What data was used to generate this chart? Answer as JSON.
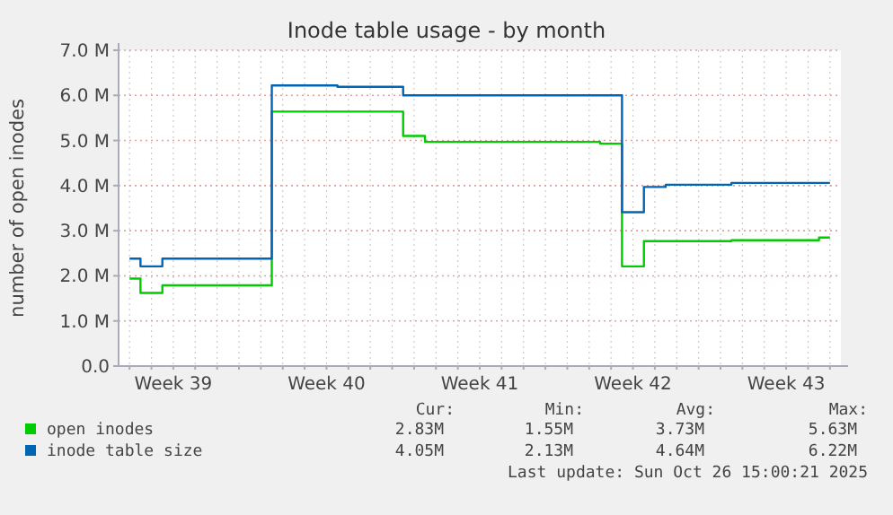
{
  "chart_data": {
    "type": "step",
    "title": "Inode table usage - by month",
    "ylabel": "number of open inodes",
    "categories": [
      null,
      null,
      "Week 39",
      null,
      null,
      null,
      null,
      null,
      null,
      "Week 40",
      null,
      null,
      null,
      null,
      null,
      null,
      "Week 41",
      null,
      null,
      null,
      null,
      null,
      null,
      "Week 42",
      null,
      null,
      null,
      null,
      null,
      null,
      "Week 43",
      null,
      null
    ],
    "ylim": [
      0,
      7
    ],
    "yticks": [
      {
        "value": 0,
        "label": "0.0"
      },
      {
        "value": 1,
        "label": "1.0 M"
      },
      {
        "value": 2,
        "label": "2.0 M"
      },
      {
        "value": 3,
        "label": "3.0 M"
      },
      {
        "value": 4,
        "label": "4.0 M"
      },
      {
        "value": 5,
        "label": "5.0 M"
      },
      {
        "value": 6,
        "label": "6.0 M"
      },
      {
        "value": 7,
        "label": "7.0 M"
      }
    ],
    "grid": true,
    "legend": "bottom",
    "series": [
      {
        "name": "open inodes",
        "color": "#00cc00",
        "values": [
          1.94,
          1.62,
          1.79,
          1.79,
          1.79,
          1.79,
          1.79,
          5.64,
          5.64,
          5.64,
          5.64,
          5.64,
          5.64,
          5.1,
          4.97,
          4.97,
          4.97,
          4.97,
          4.97,
          4.97,
          4.97,
          4.97,
          4.93,
          2.21,
          2.77,
          2.77,
          2.77,
          2.77,
          2.79,
          2.79,
          2.79,
          2.79,
          2.85
        ]
      },
      {
        "name": "inode table size",
        "color": "#0066b3",
        "values": [
          2.38,
          2.21,
          2.38,
          2.38,
          2.38,
          2.38,
          2.38,
          6.22,
          6.22,
          6.22,
          6.19,
          6.19,
          6.19,
          6.0,
          6.0,
          6.0,
          6.0,
          6.0,
          6.0,
          6.0,
          6.0,
          6.0,
          6.0,
          3.41,
          3.97,
          4.02,
          4.02,
          4.02,
          4.06,
          4.06,
          4.06,
          4.06,
          4.06
        ]
      }
    ],
    "annotations": [
      "Cur:",
      "Min:",
      "Avg:",
      "Max:",
      "2.83M",
      "1.55M",
      "3.73M",
      "5.63M",
      "4.05M",
      "2.13M",
      "4.64M",
      "6.22M",
      "Last update: Sun Oct 26 15:00:21 2025"
    ]
  }
}
